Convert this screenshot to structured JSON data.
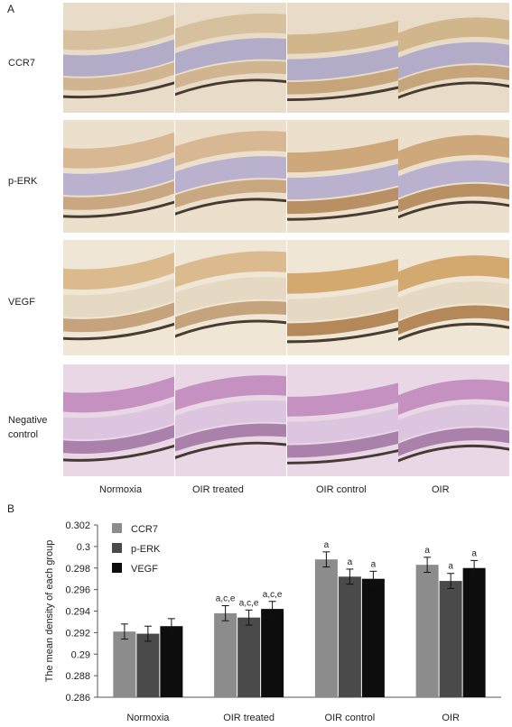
{
  "panel_a": {
    "letter": "A",
    "rows": [
      "CCR7",
      "p-ERK",
      "VEGF",
      "Negative control"
    ],
    "columns": [
      "Normoxia",
      "OIR treated",
      "OIR control",
      "OIR"
    ]
  },
  "panel_b": {
    "letter": "B"
  },
  "chart_data": {
    "type": "bar",
    "categories": [
      "Normoxia",
      "OIR treated",
      "OIR control",
      "OIR"
    ],
    "ylabel": "The mean density of each group",
    "xlabel": "",
    "ylim": [
      0.286,
      0.302
    ],
    "yticks": [
      "0.286",
      "0.288",
      "0.29",
      "0.292",
      "0.294",
      "0.296",
      "0.298",
      "0.3",
      "0.302"
    ],
    "legend_position": "top-left",
    "grid": false,
    "series": [
      {
        "name": "CCR7",
        "color": "#8c8c8c",
        "values": [
          0.2921,
          0.2938,
          0.2988,
          0.2983
        ],
        "errors": [
          0.0007,
          0.0007,
          0.0007,
          0.0007
        ],
        "labels": [
          "",
          "a,c,e",
          "a",
          "a"
        ]
      },
      {
        "name": "p-ERK",
        "color": "#4a4a4a",
        "values": [
          0.2919,
          0.2934,
          0.2972,
          0.2968
        ],
        "errors": [
          0.0007,
          0.0007,
          0.0007,
          0.0007
        ],
        "labels": [
          "",
          "a,c,e",
          "a",
          "a"
        ]
      },
      {
        "name": "VEGF",
        "color": "#0d0d0d",
        "values": [
          0.2926,
          0.2942,
          0.297,
          0.298
        ],
        "errors": [
          0.0007,
          0.0007,
          0.0007,
          0.0007
        ],
        "labels": [
          "",
          "a,c,e",
          "a",
          "a"
        ]
      }
    ]
  }
}
